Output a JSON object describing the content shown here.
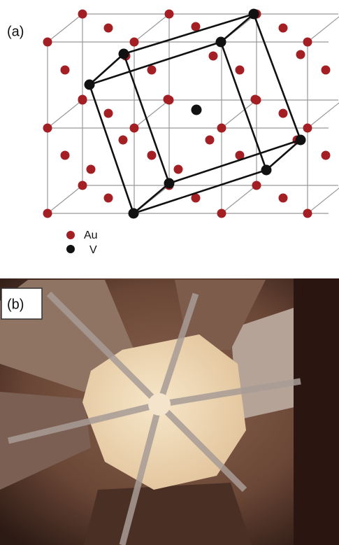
{
  "panels": [
    {
      "label": "(a)",
      "legend": [
        {
          "label": "Au"
        },
        {
          "label": "V"
        }
      ]
    },
    {
      "label": "(b)"
    }
  ]
}
